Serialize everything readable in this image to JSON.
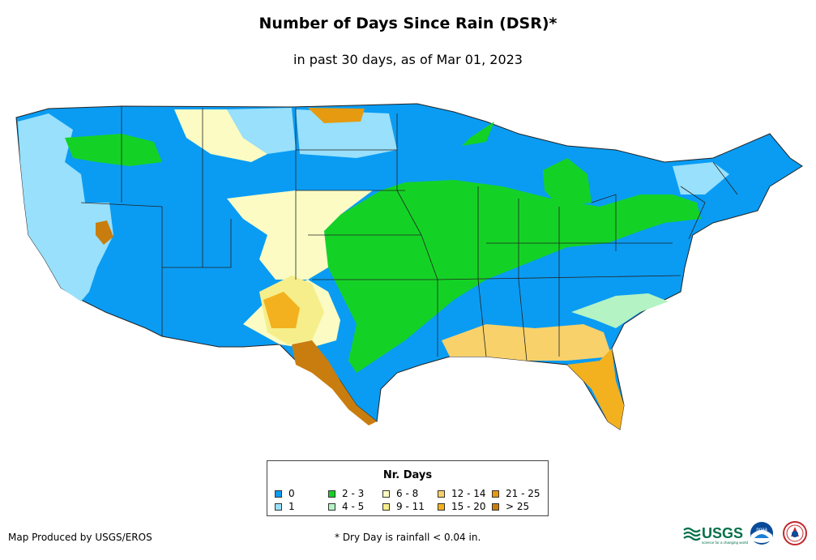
{
  "title": "Number of Days Since Rain (DSR)*",
  "subtitle": "in past 30 days, as of Mar 01, 2023",
  "legend": {
    "title": "Nr. Days",
    "items": [
      {
        "label": "0",
        "color": "#0a9cf3"
      },
      {
        "label": "1",
        "color": "#98e0fb"
      },
      {
        "label": "2 - 3",
        "color": "#14d225"
      },
      {
        "label": "4 - 5",
        "color": "#b3f3c4"
      },
      {
        "label": "6 - 8",
        "color": "#fbfbc3"
      },
      {
        "label": "9 - 11",
        "color": "#f6ee8a"
      },
      {
        "label": "12 - 14",
        "color": "#f8d16a"
      },
      {
        "label": "15 - 20",
        "color": "#f3b11f"
      },
      {
        "label": "21 - 25",
        "color": "#e59a10"
      },
      {
        "label": "> 25",
        "color": "#c97d0e"
      }
    ]
  },
  "credit": "Map Produced by USGS/EROS",
  "note": "* Dry Day is rainfall < 0.04 in.",
  "logos": {
    "usgs": "USGS",
    "usgs_tagline": "science for a changing world",
    "noaa": "noaa"
  },
  "icons": {
    "map": "us-map",
    "usgs": "usgs-logo-icon",
    "noaa": "noaa-logo-icon",
    "nws": "nws-logo-icon"
  }
}
